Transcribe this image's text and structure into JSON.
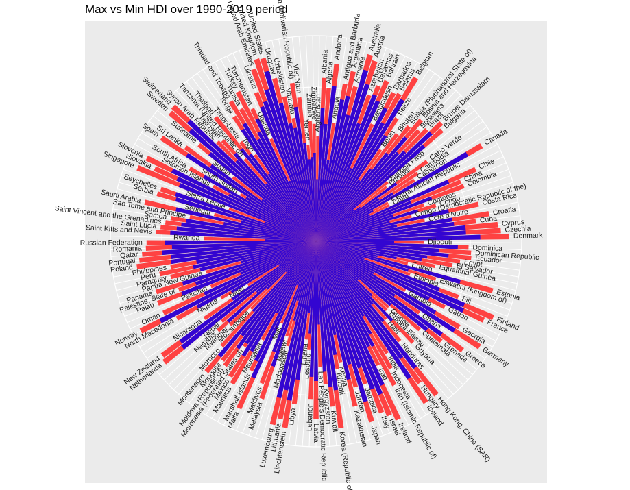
{
  "chart_data": {
    "type": "bar",
    "polar": true,
    "title": "Max vs Min HDI over 1990-2019 period",
    "xlabel": "",
    "ylabel": "",
    "ylim": [
      0,
      1
    ],
    "grid": true,
    "legend": "none",
    "colors": {
      "max": "#ff3333",
      "min": "#2200dd",
      "panel": "#ebebeb",
      "grid": "#ffffff"
    },
    "series": [
      {
        "role": "max"
      },
      {
        "role": "min"
      }
    ],
    "categories": [
      "Afghanistan",
      "Albania",
      "Algeria",
      "Andorra",
      "Angola",
      "Antigua and Barbuda",
      "Argentina",
      "Armenia",
      "Australia",
      "Austria",
      "Azerbaijan",
      "Bahamas",
      "Bahrain",
      "Bangladesh",
      "Barbados",
      "Belarus",
      "Belgium",
      "Belize",
      "Benin",
      "Bhutan",
      "Bolivia (Plurinational State of)",
      "Bosnia and Herzegovina",
      "Botswana",
      "Brazil",
      "Brunei Darussalam",
      "Bulgaria",
      "Burkina Faso",
      "Burundi",
      "Cabo Verde",
      "Cambodia",
      "Cameroon",
      "Canada",
      "Central African Republic",
      "Chad",
      "Chile",
      "China",
      "Colombia",
      "Comoros",
      "Congo",
      "Congo (Democratic Republic of the)",
      "Costa Rica",
      "Cote d'Ivoire",
      "Croatia",
      "Cuba",
      "Cyprus",
      "Czechia",
      "Denmark",
      "Djibouti",
      "Dominica",
      "Dominican Republic",
      "Ecuador",
      "Egypt",
      "El Salvador",
      "Equatorial Guinea",
      "Eritrea",
      "Estonia",
      "Eswatini (Kingdom of)",
      "Ethiopia",
      "Fiji",
      "Finland",
      "France",
      "Gabon",
      "Gambia",
      "Georgia",
      "Germany",
      "Ghana",
      "Greece",
      "Grenada",
      "Guatemala",
      "Guinea",
      "Guinea-Bissau",
      "Guyana",
      "Haiti",
      "Honduras",
      "Hong Kong, China (SAR)",
      "Hungary",
      "Iceland",
      "India",
      "Indonesia",
      "Iran (Islamic Republic of)",
      "Iraq",
      "Ireland",
      "Israel",
      "Italy",
      "Jamaica",
      "Japan",
      "Jordan",
      "Kazakhstan",
      "Kenya",
      "Kiribati",
      "Korea (Republic of)",
      "Kuwait",
      "Kyrgyzstan",
      "Lao People's Democratic Republic",
      "Latvia",
      "Lebanon",
      "Lesotho",
      "Liberia",
      "Libya",
      "Liechtenstein",
      "Lithuania",
      "Luxembourg",
      "Madagascar",
      "Malawi",
      "Malaysia",
      "Maldives",
      "Mali",
      "Malta",
      "Marshall Islands",
      "Mauritania",
      "Mauritius",
      "Mexico",
      "Micronesia (Federated States of)",
      "Moldova (Republic of)",
      "Mongolia",
      "Montenegro",
      "Morocco",
      "Mozambique",
      "Myanmar",
      "Namibia",
      "Nepal",
      "Netherlands",
      "New Zealand",
      "Nicaragua",
      "Niger",
      "Nigeria",
      "North Macedonia",
      "Norway",
      "Oman",
      "Pakistan",
      "Palau",
      "Palestine, State of",
      "Panama",
      "Papua New Guinea",
      "Paraguay",
      "Peru",
      "Philippines",
      "Poland",
      "Portugal",
      "Qatar",
      "Romania",
      "Russian Federation",
      "Rwanda",
      "Saint Kitts and Nevis",
      "Saint Lucia",
      "Saint Vincent and the Grenadines",
      "Samoa",
      "Sao Tome and Principe",
      "Saudi Arabia",
      "Senegal",
      "Serbia",
      "Seychelles",
      "Sierra Leone",
      "Singapore",
      "Slovakia",
      "Slovenia",
      "Solomon Islands",
      "South Africa",
      "South Sudan",
      "Spain",
      "Sri Lanka",
      "Sudan",
      "Suriname",
      "Sweden",
      "Switzerland",
      "Syrian Arab Republic",
      "Tajikistan",
      "Tanzania (United Republic of)",
      "Thailand",
      "Timor-Leste",
      "Togo",
      "Tonga",
      "Trinidad and Tobago",
      "Tunisia",
      "Turkey",
      "Turkmenistan",
      "Uganda",
      "Ukraine",
      "United Arab Emirates",
      "United Kingdom",
      "United States",
      "Uruguay",
      "Uzbekistan",
      "Vanuatu",
      "Venezuela (Bolivarian Republic of)",
      "Viet Nam",
      "Yemen",
      "Zambia",
      "Zimbabwe"
    ],
    "max_values": [
      0.511,
      0.795,
      0.748,
      0.868,
      0.581,
      0.778,
      0.845,
      0.776,
      0.944,
      0.922,
      0.756,
      0.814,
      0.852,
      0.632,
      0.814,
      0.823,
      0.931,
      0.716,
      0.545,
      0.654,
      0.718,
      0.78,
      0.735,
      0.765,
      0.838,
      0.816,
      0.452,
      0.433,
      0.665,
      0.594,
      0.563,
      0.929,
      0.397,
      0.398,
      0.851,
      0.761,
      0.767,
      0.554,
      0.608,
      0.48,
      0.81,
      0.538,
      0.851,
      0.783,
      0.887,
      0.9,
      0.94,
      0.524,
      0.742,
      0.756,
      0.759,
      0.707,
      0.673,
      0.592,
      0.459,
      0.892,
      0.611,
      0.485,
      0.743,
      0.938,
      0.901,
      0.703,
      0.496,
      0.812,
      0.947,
      0.611,
      0.888,
      0.779,
      0.663,
      0.477,
      0.48,
      0.682,
      0.51,
      0.634,
      0.949,
      0.854,
      0.949,
      0.645,
      0.718,
      0.797,
      0.674,
      0.955,
      0.919,
      0.892,
      0.734,
      0.919,
      0.735,
      0.825,
      0.601,
      0.63,
      0.916,
      0.808,
      0.697,
      0.613,
      0.866,
      0.768,
      0.527,
      0.48,
      0.799,
      0.919,
      0.882,
      0.916,
      0.528,
      0.483,
      0.81,
      0.74,
      0.434,
      0.895,
      0.704,
      0.546,
      0.804,
      0.779,
      0.62,
      0.75,
      0.737,
      0.829,
      0.686,
      0.456,
      0.583,
      0.646,
      0.602,
      0.944,
      0.931,
      0.66,
      0.394,
      0.539,
      0.774,
      0.957,
      0.82,
      0.557,
      0.826,
      0.708,
      0.815,
      0.555,
      0.728,
      0.777,
      0.718,
      0.88,
      0.864,
      0.848,
      0.828,
      0.824,
      0.545,
      0.779,
      0.759,
      0.738,
      0.715,
      0.625,
      0.854,
      0.512,
      0.806,
      0.796,
      0.452,
      0.938,
      0.86,
      0.917,
      0.567,
      0.709,
      0.433,
      0.904,
      0.782,
      0.51,
      0.738,
      0.945,
      0.955,
      0.681,
      0.668,
      0.529,
      0.777,
      0.606,
      0.515,
      0.725,
      0.796,
      0.74,
      0.82,
      0.715,
      0.544,
      0.779,
      0.89,
      0.932,
      0.926,
      0.817,
      0.72,
      0.609,
      0.778,
      0.704,
      0.47,
      0.584,
      0.571
    ],
    "min_values": [
      0.302,
      0.65,
      0.572,
      0.759,
      0.4,
      0.7,
      0.723,
      0.633,
      0.866,
      0.803,
      0.609,
      0.766,
      0.745,
      0.394,
      0.73,
      0.66,
      0.806,
      0.614,
      0.364,
      0.44,
      0.549,
      0.667,
      0.586,
      0.613,
      0.768,
      0.7,
      0.24,
      0.271,
      0.481,
      0.368,
      0.44,
      0.848,
      0.314,
      0.291,
      0.706,
      0.499,
      0.6,
      0.396,
      0.517,
      0.37,
      0.661,
      0.4,
      0.67,
      0.676,
      0.73,
      0.73,
      0.799,
      0.38,
      0.69,
      0.599,
      0.648,
      0.546,
      0.521,
      0.4,
      0.308,
      0.728,
      0.47,
      0.25,
      0.643,
      0.784,
      0.791,
      0.617,
      0.321,
      0.675,
      0.801,
      0.465,
      0.76,
      0.69,
      0.477,
      0.277,
      0.38,
      0.534,
      0.412,
      0.508,
      0.781,
      0.705,
      0.805,
      0.431,
      0.523,
      0.581,
      0.572,
      0.77,
      0.807,
      0.769,
      0.651,
      0.816,
      0.62,
      0.69,
      0.465,
      0.56,
      0.73,
      0.713,
      0.636,
      0.405,
      0.68,
      0.66,
      0.45,
      0.35,
      0.679,
      0.785,
      0.738,
      0.782,
      0.4,
      0.303,
      0.643,
      0.575,
      0.232,
      0.73,
      0.65,
      0.397,
      0.62,
      0.66,
      0.6,
      0.645,
      0.583,
      0.73,
      0.458,
      0.209,
      0.333,
      0.579,
      0.38,
      0.83,
      0.82,
      0.496,
      0.216,
      0.48,
      0.66,
      0.85,
      0.6,
      0.4,
      0.7,
      0.62,
      0.68,
      0.38,
      0.58,
      0.61,
      0.59,
      0.712,
      0.71,
      0.75,
      0.701,
      0.735,
      0.25,
      0.71,
      0.68,
      0.66,
      0.64,
      0.457,
      0.698,
      0.376,
      0.711,
      0.72,
      0.266,
      0.718,
      0.74,
      0.779,
      0.48,
      0.629,
      0.4,
      0.755,
      0.629,
      0.331,
      0.67,
      0.815,
      0.851,
      0.55,
      0.58,
      0.37,
      0.577,
      0.53,
      0.4,
      0.65,
      0.67,
      0.569,
      0.599,
      0.66,
      0.32,
      0.705,
      0.723,
      0.775,
      0.86,
      0.692,
      0.586,
      0.56,
      0.66,
      0.483,
      0.4,
      0.41,
      0.43
    ]
  }
}
